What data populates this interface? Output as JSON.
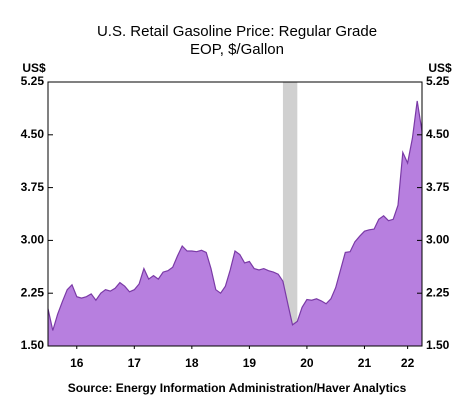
{
  "chart_data": {
    "type": "area",
    "title": "U.S. Retail Gasoline Price: Regular Grade",
    "subtitle": "EOP, $/Gallon",
    "y_unit": "US$",
    "source": "Source:  Energy Information Administration/Haver Analytics",
    "x": [
      16,
      16.083,
      16.167,
      16.25,
      16.333,
      16.417,
      16.5,
      16.583,
      16.667,
      16.75,
      16.833,
      16.917,
      17,
      17.083,
      17.167,
      17.25,
      17.333,
      17.417,
      17.5,
      17.583,
      17.667,
      17.75,
      17.833,
      17.917,
      18,
      18.083,
      18.167,
      18.25,
      18.333,
      18.417,
      18.5,
      18.583,
      18.667,
      18.75,
      18.833,
      18.917,
      19,
      19.083,
      19.167,
      19.25,
      19.333,
      19.417,
      19.5,
      19.583,
      19.667,
      19.75,
      19.833,
      19.917,
      20,
      20.083,
      20.167,
      20.25,
      20.333,
      20.417,
      20.5,
      20.583,
      20.667,
      20.75,
      20.833,
      20.917,
      21,
      21.083,
      21.167,
      21.25,
      21.333,
      21.417,
      21.5,
      21.583,
      21.667,
      21.75,
      21.833,
      21.917,
      22,
      22.083,
      22.167,
      22.25,
      22.333,
      22.417,
      22.5
    ],
    "values": [
      2.03,
      1.72,
      1.95,
      2.13,
      2.3,
      2.37,
      2.2,
      2.18,
      2.2,
      2.24,
      2.15,
      2.25,
      2.3,
      2.28,
      2.32,
      2.4,
      2.35,
      2.27,
      2.3,
      2.38,
      2.6,
      2.45,
      2.5,
      2.45,
      2.55,
      2.57,
      2.62,
      2.78,
      2.92,
      2.85,
      2.85,
      2.84,
      2.86,
      2.83,
      2.6,
      2.3,
      2.25,
      2.35,
      2.58,
      2.85,
      2.8,
      2.68,
      2.7,
      2.6,
      2.58,
      2.6,
      2.57,
      2.55,
      2.52,
      2.42,
      2.1,
      1.8,
      1.85,
      2.05,
      2.16,
      2.15,
      2.17,
      2.14,
      2.1,
      2.17,
      2.33,
      2.58,
      2.83,
      2.84,
      2.98,
      3.06,
      3.13,
      3.15,
      3.16,
      3.3,
      3.35,
      3.28,
      3.3,
      3.5,
      4.25,
      4.1,
      4.45,
      4.98,
      4.55
    ],
    "color": "#b77fdf",
    "line_color": "#7a3aa6",
    "recessions": [
      [
        20.083,
        20.333
      ]
    ],
    "xlim": [
      16,
      22.5
    ],
    "xticks": [
      {
        "value": 16.5,
        "label": "16"
      },
      {
        "value": 17.5,
        "label": "17"
      },
      {
        "value": 18.5,
        "label": "18"
      },
      {
        "value": 19.5,
        "label": "19"
      },
      {
        "value": 20.5,
        "label": "20"
      },
      {
        "value": 21.5,
        "label": "21"
      },
      {
        "value": 22.25,
        "label": "22"
      }
    ],
    "ylim": [
      1.5,
      5.25
    ],
    "yticks": [
      {
        "value": 1.5,
        "label": "1.50"
      },
      {
        "value": 2.25,
        "label": "2.25"
      },
      {
        "value": 3,
        "label": "3.00"
      },
      {
        "value": 3.75,
        "label": "3.75"
      },
      {
        "value": 4.5,
        "label": "4.50"
      },
      {
        "value": 5.25,
        "label": "5.25"
      }
    ],
    "grid": false
  }
}
